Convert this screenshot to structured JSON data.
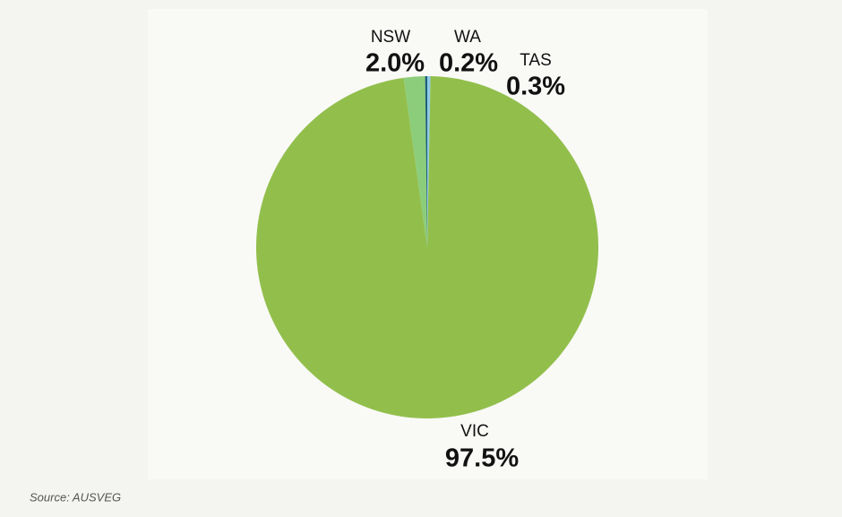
{
  "chart_data": {
    "type": "pie",
    "categories": [
      "TAS",
      "VIC",
      "NSW",
      "WA"
    ],
    "values": [
      0.3,
      97.5,
      2.0,
      0.2
    ],
    "value_labels": [
      "0.3%",
      "97.5%",
      "2.0%",
      "0.2%"
    ],
    "colors": [
      "#8ecae6",
      "#92bf4c",
      "#8ccd7b",
      "#1d5f78"
    ],
    "source": "Source: AUSVEG"
  }
}
